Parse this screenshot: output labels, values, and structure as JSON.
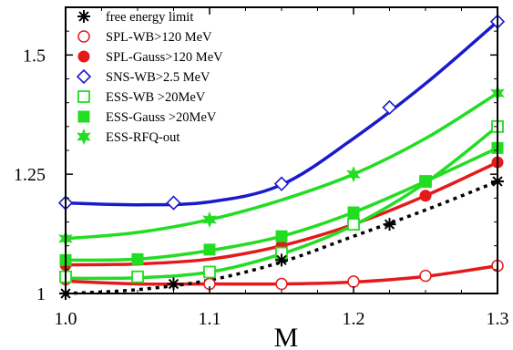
{
  "chart_data": {
    "type": "line",
    "title": "",
    "xlabel": "M",
    "ylabel": "",
    "xlim": [
      1.0,
      1.3
    ],
    "ylim": [
      1.0,
      1.6
    ],
    "grid": false,
    "legend_position": "top-left",
    "x_ticks": [
      1.0,
      1.1,
      1.2,
      1.3
    ],
    "x_tick_labels": [
      "1.0",
      "1.1",
      "1.2",
      "1.3"
    ],
    "y_ticks": [
      1.0,
      1.25,
      1.5
    ],
    "y_tick_labels": [
      "1",
      "1.25",
      "1.5"
    ],
    "series": [
      {
        "name": "free energy limit",
        "color": "#000000",
        "marker": "asterisk",
        "line": "dotted",
        "points": [
          [
            1.0,
            1.0
          ],
          [
            1.075,
            1.02
          ],
          [
            1.15,
            1.07
          ],
          [
            1.225,
            1.145
          ],
          [
            1.3,
            1.235
          ]
        ],
        "curve": [
          [
            1.0,
            1.0
          ],
          [
            1.05,
            1.008
          ],
          [
            1.1,
            1.028
          ],
          [
            1.15,
            1.066
          ],
          [
            1.2,
            1.12
          ],
          [
            1.25,
            1.175
          ],
          [
            1.3,
            1.235
          ]
        ]
      },
      {
        "name": "SPL-WB>120 MeV",
        "color": "#e41a1a",
        "marker": "circle-open",
        "line": "solid",
        "points": [
          [
            1.0,
            1.03
          ],
          [
            1.1,
            1.02
          ],
          [
            1.15,
            1.02
          ],
          [
            1.2,
            1.025
          ],
          [
            1.25,
            1.037
          ],
          [
            1.3,
            1.058
          ]
        ],
        "curve": [
          [
            1.0,
            1.026
          ],
          [
            1.05,
            1.02
          ],
          [
            1.1,
            1.02
          ],
          [
            1.15,
            1.02
          ],
          [
            1.2,
            1.024
          ],
          [
            1.25,
            1.036
          ],
          [
            1.3,
            1.058
          ]
        ]
      },
      {
        "name": "SPL-Gauss>120 MeV",
        "color": "#e41a1a",
        "marker": "circle-filled",
        "line": "solid",
        "points": [
          [
            1.0,
            1.06
          ],
          [
            1.15,
            1.1
          ],
          [
            1.2,
            1.145
          ],
          [
            1.25,
            1.205
          ],
          [
            1.3,
            1.275
          ]
        ],
        "curve": [
          [
            1.0,
            1.06
          ],
          [
            1.05,
            1.062
          ],
          [
            1.1,
            1.072
          ],
          [
            1.15,
            1.1
          ],
          [
            1.2,
            1.145
          ],
          [
            1.25,
            1.205
          ],
          [
            1.3,
            1.275
          ]
        ]
      },
      {
        "name": "SNS-WB>2.5 MeV",
        "color": "#1a1acc",
        "marker": "diamond-open",
        "line": "solid",
        "points": [
          [
            1.0,
            1.19
          ],
          [
            1.075,
            1.19
          ],
          [
            1.15,
            1.23
          ],
          [
            1.225,
            1.39
          ],
          [
            1.3,
            1.57
          ]
        ],
        "curve": [
          [
            1.0,
            1.19
          ],
          [
            1.05,
            1.186
          ],
          [
            1.1,
            1.192
          ],
          [
            1.15,
            1.228
          ],
          [
            1.2,
            1.325
          ],
          [
            1.25,
            1.44
          ],
          [
            1.3,
            1.57
          ]
        ]
      },
      {
        "name": "ESS-WB >20MeV",
        "color": "#22dd22",
        "marker": "square-open",
        "line": "solid",
        "points": [
          [
            1.0,
            1.035
          ],
          [
            1.05,
            1.035
          ],
          [
            1.1,
            1.045
          ],
          [
            1.15,
            1.085
          ],
          [
            1.2,
            1.145
          ],
          [
            1.25,
            1.235
          ],
          [
            1.3,
            1.35
          ]
        ],
        "curve": [
          [
            1.0,
            1.032
          ],
          [
            1.05,
            1.033
          ],
          [
            1.1,
            1.045
          ],
          [
            1.15,
            1.083
          ],
          [
            1.2,
            1.143
          ],
          [
            1.25,
            1.232
          ],
          [
            1.3,
            1.35
          ]
        ]
      },
      {
        "name": "ESS-Gauss >20MeV",
        "color": "#22dd22",
        "marker": "square-filled",
        "line": "solid",
        "points": [
          [
            1.0,
            1.07
          ],
          [
            1.05,
            1.072
          ],
          [
            1.1,
            1.092
          ],
          [
            1.15,
            1.12
          ],
          [
            1.2,
            1.17
          ],
          [
            1.25,
            1.235
          ],
          [
            1.3,
            1.305
          ]
        ],
        "curve": [
          [
            1.0,
            1.07
          ],
          [
            1.05,
            1.072
          ],
          [
            1.1,
            1.09
          ],
          [
            1.15,
            1.12
          ],
          [
            1.2,
            1.17
          ],
          [
            1.25,
            1.235
          ],
          [
            1.3,
            1.305
          ]
        ]
      },
      {
        "name": "ESS-RFQ-out",
        "color": "#22dd22",
        "marker": "star",
        "line": "solid",
        "points": [
          [
            1.0,
            1.115
          ],
          [
            1.1,
            1.155
          ],
          [
            1.2,
            1.25
          ],
          [
            1.3,
            1.42
          ]
        ],
        "curve": [
          [
            1.0,
            1.115
          ],
          [
            1.05,
            1.128
          ],
          [
            1.1,
            1.155
          ],
          [
            1.15,
            1.196
          ],
          [
            1.2,
            1.25
          ],
          [
            1.25,
            1.325
          ],
          [
            1.3,
            1.42
          ]
        ]
      }
    ]
  }
}
